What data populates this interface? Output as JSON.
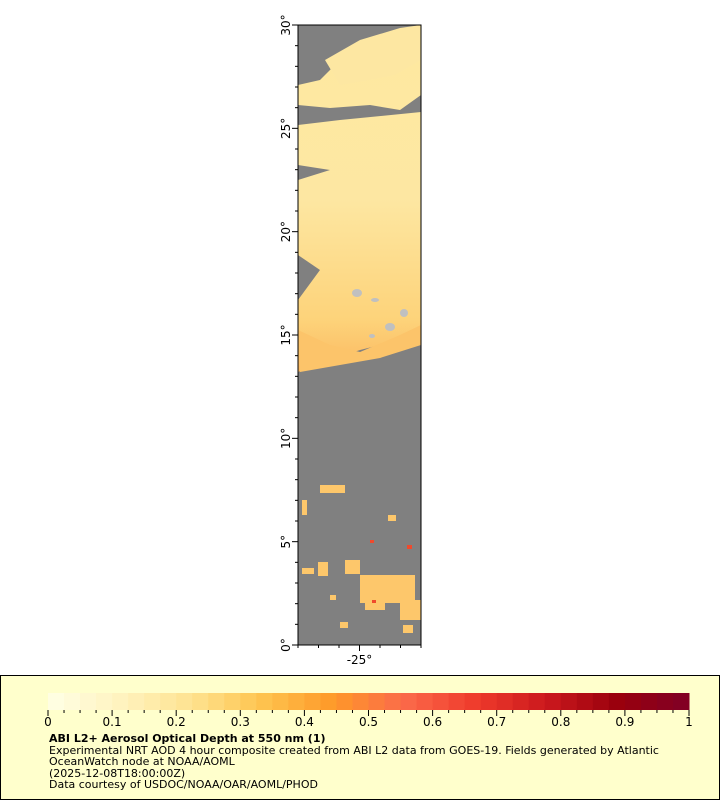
{
  "map": {
    "lat_labels": [
      "0°",
      "5°",
      "10°",
      "15°",
      "20°",
      "25°",
      "30°"
    ],
    "lat_values": [
      0,
      5,
      10,
      15,
      20,
      25,
      30
    ],
    "lon_labels": [
      "-25°"
    ],
    "lon_values": [
      -25
    ],
    "lon_range": [
      -28,
      -22
    ],
    "lat_range": [
      0,
      30
    ],
    "no_data_color": "#808080",
    "land_color": "#c0c0c0"
  },
  "colorbar": {
    "ticks": [
      "0",
      "0.1",
      "0.2",
      "0.3",
      "0.4",
      "0.5",
      "0.6",
      "0.7",
      "0.8",
      "0.9",
      "1"
    ],
    "range": [
      0,
      1
    ],
    "colors": [
      "#ffffe5",
      "#fff3c0",
      "#fee391",
      "#fec44f",
      "#fe9929",
      "#fb6a4a",
      "#ef3b2c",
      "#cb181d",
      "#99000d",
      "#800026"
    ]
  },
  "legend": {
    "title": "ABI L2+ Aerosol Optical Depth at 550 nm (1)",
    "line1": "Experimental NRT AOD 4 hour composite created from ABI L2 data from GOES-19. Fields generated by Atlantic",
    "line2": "OceanWatch node at NOAA/AOML",
    "line3": "(2025-12-08T18:00:00Z)",
    "line4": "Data courtesy of USDOC/NOAA/OAR/AOML/PHOD"
  }
}
